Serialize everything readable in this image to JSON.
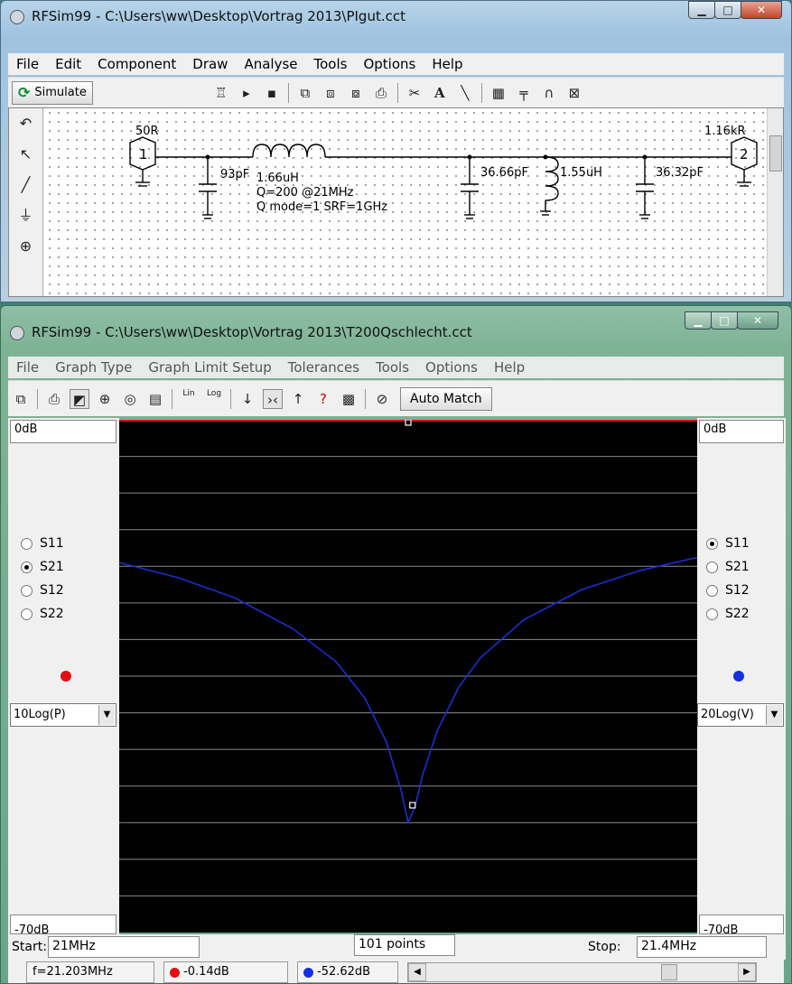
{
  "win1": {
    "title": "RFSim99 - C:\\Users\\ww\\Desktop\\Vortrag 2013\\PIgut.cct",
    "menu": [
      "File",
      "Edit",
      "Component",
      "Draw",
      "Analyse",
      "Tools",
      "Options",
      "Help"
    ],
    "simulate_label": "Simulate",
    "labels": {
      "port1_impedance": "50R",
      "port2_impedance": "1.16kR",
      "port1": "1",
      "port2": "2",
      "c1": "93pF",
      "l1": "1.66uH",
      "l1_q": "Q=200 @21MHz",
      "l1_qmode": "Q mode=1 SRF=1GHz",
      "c2": "36.66pF",
      "l2": "1.55uH",
      "c3": "36.32pF"
    }
  },
  "win2": {
    "title": "RFSim99 - C:\\Users\\ww\\Desktop\\Vortrag 2013\\T200Qschlecht.cct",
    "menu": [
      "File",
      "Graph Type",
      "Graph Limit Setup",
      "Tolerances",
      "Tools",
      "Options",
      "Help"
    ],
    "auto_match_label": "Auto Match",
    "lin_label": "Lin",
    "log_label": "Log",
    "left": {
      "top_value": "0dB",
      "bottom_value": "-70dB",
      "params": [
        "S11",
        "S21",
        "S12",
        "S22"
      ],
      "selected": "S21",
      "marker_color": "#e41010",
      "scale": "10Log(P)"
    },
    "right": {
      "top_value": "0dB",
      "bottom_value": "-70dB",
      "params": [
        "S11",
        "S21",
        "S12",
        "S22"
      ],
      "selected": "S11",
      "marker_color": "#1530e0",
      "scale": "20Log(V)"
    },
    "start_label": "Start:",
    "start_value": "21MHz",
    "points": "101 points",
    "stop_label": "Stop:",
    "stop_value": "21.4MHz",
    "status": {
      "freq": "f=21.203MHz",
      "red_value": "-0.14dB",
      "blue_value": "-52.62dB"
    }
  },
  "chart_data": {
    "type": "line",
    "xlim": [
      21.0,
      21.4
    ],
    "ylim": [
      -70,
      0
    ],
    "xlabel": "",
    "ylabel": "",
    "grid": true,
    "series": [
      {
        "color": "#1a2fd0",
        "x": [
          21.0,
          21.04,
          21.08,
          21.12,
          21.15,
          21.17,
          21.185,
          21.195,
          21.2,
          21.205,
          21.21,
          21.22,
          21.235,
          21.25,
          21.28,
          21.32,
          21.36,
          21.4
        ],
        "y": [
          -19.5,
          -21.5,
          -24.3,
          -28.5,
          -33.0,
          -38.0,
          -44.0,
          -50.5,
          -55.0,
          -52.6,
          -48.5,
          -42.5,
          -36.5,
          -32.5,
          -27.3,
          -23.2,
          -20.6,
          -18.8
        ]
      }
    ],
    "markers": [
      {
        "x": 21.2,
        "y": 0
      },
      {
        "x": 21.203,
        "y": -52.62
      }
    ]
  }
}
